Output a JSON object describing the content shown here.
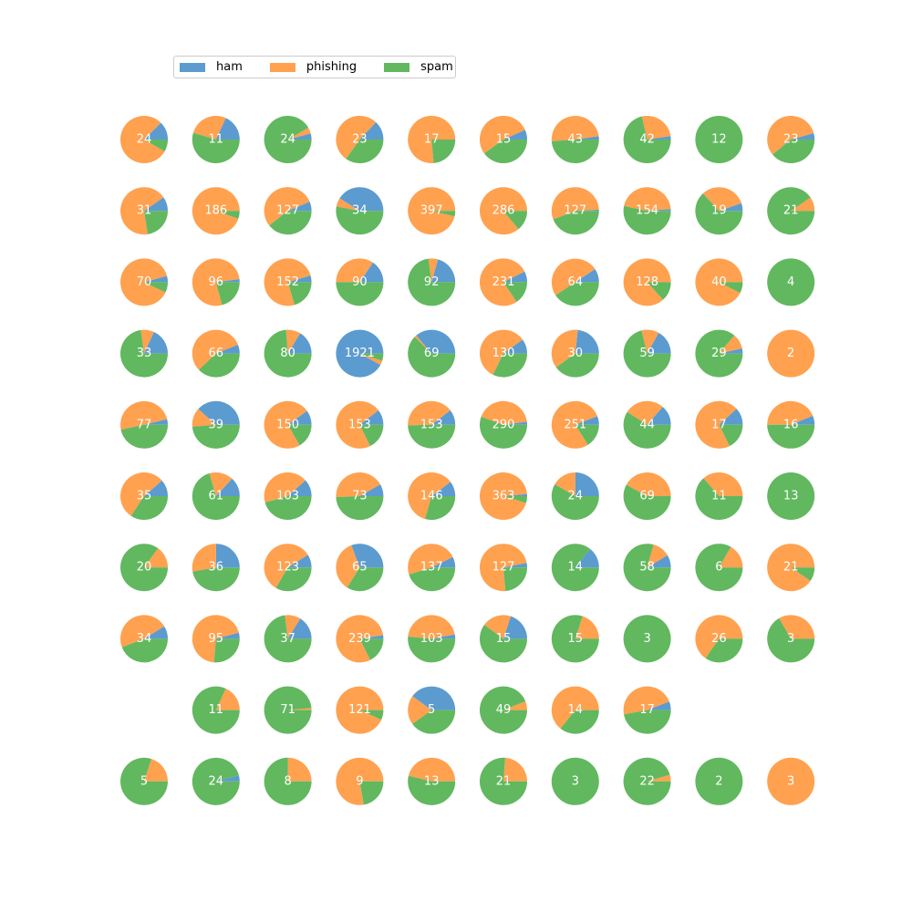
{
  "legend": {
    "placement": "top-left",
    "items": [
      {
        "label": "ham",
        "color": "#5b9bd0"
      },
      {
        "label": "phishing",
        "color": "#ffa14f"
      },
      {
        "label": "spam",
        "color": "#61b85f"
      }
    ]
  },
  "chart_data": {
    "type": "pie",
    "series_names": [
      "ham",
      "phishing",
      "spam"
    ],
    "colors": {
      "ham": "#5b9bd0",
      "phishing": "#ffa14f",
      "spam": "#61b85f"
    },
    "grid": {
      "rows": 10,
      "cols": 10
    },
    "pies": [
      {
        "row": 0,
        "col": 0,
        "label": "24",
        "ham": 3,
        "phishing": 19,
        "spam": 2
      },
      {
        "row": 0,
        "col": 1,
        "label": "11",
        "ham": 2,
        "phishing": 3,
        "spam": 6
      },
      {
        "row": 0,
        "col": 2,
        "label": "24",
        "ham": 1,
        "phishing": 1,
        "spam": 22
      },
      {
        "row": 0,
        "col": 3,
        "label": "23",
        "ham": 3,
        "phishing": 12,
        "spam": 8
      },
      {
        "row": 0,
        "col": 4,
        "label": "17",
        "ham": 0,
        "phishing": 13,
        "spam": 4
      },
      {
        "row": 0,
        "col": 5,
        "label": "15",
        "ham": 1,
        "phishing": 8,
        "spam": 6
      },
      {
        "row": 0,
        "col": 6,
        "label": "43",
        "ham": 1,
        "phishing": 21,
        "spam": 21
      },
      {
        "row": 0,
        "col": 7,
        "label": "42",
        "ham": 1,
        "phishing": 11,
        "spam": 30
      },
      {
        "row": 0,
        "col": 8,
        "label": "12",
        "ham": 0,
        "phishing": 0,
        "spam": 12
      },
      {
        "row": 0,
        "col": 9,
        "label": "23",
        "ham": 1,
        "phishing": 13,
        "spam": 9
      },
      {
        "row": 1,
        "col": 0,
        "label": "31",
        "ham": 3,
        "phishing": 21,
        "spam": 7
      },
      {
        "row": 1,
        "col": 1,
        "label": "186",
        "ham": 0,
        "phishing": 176,
        "spam": 10
      },
      {
        "row": 1,
        "col": 2,
        "label": "127",
        "ham": 8,
        "phishing": 69,
        "spam": 50
      },
      {
        "row": 1,
        "col": 3,
        "label": "34",
        "ham": 14,
        "phishing": 2,
        "spam": 18
      },
      {
        "row": 1,
        "col": 4,
        "label": "397",
        "ham": 0,
        "phishing": 382,
        "spam": 15
      },
      {
        "row": 1,
        "col": 5,
        "label": "286",
        "ham": 0,
        "phishing": 246,
        "spam": 40
      },
      {
        "row": 1,
        "col": 6,
        "label": "127",
        "ham": 1,
        "phishing": 70,
        "spam": 56
      },
      {
        "row": 1,
        "col": 7,
        "label": "154",
        "ham": 2,
        "phishing": 70,
        "spam": 82
      },
      {
        "row": 1,
        "col": 8,
        "label": "19",
        "ham": 1,
        "phishing": 6,
        "spam": 12
      },
      {
        "row": 1,
        "col": 9,
        "label": "21",
        "ham": 0,
        "phishing": 2,
        "spam": 19
      },
      {
        "row": 2,
        "col": 0,
        "label": "70",
        "ham": 3,
        "phishing": 62,
        "spam": 5
      },
      {
        "row": 2,
        "col": 1,
        "label": "96",
        "ham": 2,
        "phishing": 74,
        "spam": 20
      },
      {
        "row": 2,
        "col": 2,
        "label": "152",
        "ham": 7,
        "phishing": 114,
        "spam": 31
      },
      {
        "row": 2,
        "col": 3,
        "label": "90",
        "ham": 14,
        "phishing": 31,
        "spam": 45
      },
      {
        "row": 2,
        "col": 4,
        "label": "92",
        "ham": 19,
        "phishing": 6,
        "spam": 67
      },
      {
        "row": 2,
        "col": 5,
        "label": "231",
        "ham": 17,
        "phishing": 178,
        "spam": 36
      },
      {
        "row": 2,
        "col": 6,
        "label": "64",
        "ham": 6,
        "phishing": 32,
        "spam": 26
      },
      {
        "row": 2,
        "col": 7,
        "label": "128",
        "ham": 0,
        "phishing": 111,
        "spam": 17
      },
      {
        "row": 2,
        "col": 8,
        "label": "40",
        "ham": 0,
        "phishing": 37,
        "spam": 3
      },
      {
        "row": 2,
        "col": 9,
        "label": "4",
        "ham": 0,
        "phishing": 0,
        "spam": 4
      },
      {
        "row": 3,
        "col": 0,
        "label": "33",
        "ham": 6,
        "phishing": 3,
        "spam": 24
      },
      {
        "row": 3,
        "col": 1,
        "label": "66",
        "ham": 4,
        "phishing": 37,
        "spam": 25
      },
      {
        "row": 3,
        "col": 2,
        "label": "80",
        "ham": 13,
        "phishing": 8,
        "spam": 59
      },
      {
        "row": 3,
        "col": 3,
        "label": "1921",
        "ham": 1767,
        "phishing": 58,
        "spam": 96
      },
      {
        "row": 3,
        "col": 4,
        "label": "69",
        "ham": 25,
        "phishing": 1,
        "spam": 43
      },
      {
        "row": 3,
        "col": 5,
        "label": "130",
        "ham": 13,
        "phishing": 75,
        "spam": 42
      },
      {
        "row": 3,
        "col": 6,
        "label": "30",
        "ham": 7,
        "phishing": 11,
        "spam": 12
      },
      {
        "row": 3,
        "col": 7,
        "label": "59",
        "ham": 10,
        "phishing": 7,
        "spam": 42
      },
      {
        "row": 3,
        "col": 8,
        "label": "29",
        "ham": 1,
        "phishing": 3,
        "spam": 25
      },
      {
        "row": 3,
        "col": 9,
        "label": "2",
        "ham": 0,
        "phishing": 2,
        "spam": 0
      },
      {
        "row": 4,
        "col": 0,
        "label": "77",
        "ham": 3,
        "phishing": 38,
        "spam": 36
      },
      {
        "row": 4,
        "col": 1,
        "label": "39",
        "ham": 15,
        "phishing": 5,
        "spam": 19
      },
      {
        "row": 4,
        "col": 2,
        "label": "150",
        "ham": 15,
        "phishing": 110,
        "spam": 25
      },
      {
        "row": 4,
        "col": 3,
        "label": "153",
        "ham": 16,
        "phishing": 110,
        "spam": 27
      },
      {
        "row": 4,
        "col": 4,
        "label": "153",
        "ham": 16,
        "phishing": 61,
        "spam": 76
      },
      {
        "row": 4,
        "col": 5,
        "label": "290",
        "ham": 6,
        "phishing": 123,
        "spam": 161
      },
      {
        "row": 4,
        "col": 6,
        "label": "251",
        "ham": 15,
        "phishing": 196,
        "spam": 40
      },
      {
        "row": 4,
        "col": 7,
        "label": "44",
        "ham": 6,
        "phishing": 12,
        "spam": 26
      },
      {
        "row": 4,
        "col": 8,
        "label": "17",
        "ham": 2,
        "phishing": 12,
        "spam": 3
      },
      {
        "row": 4,
        "col": 9,
        "label": "16",
        "ham": 1,
        "phishing": 7,
        "spam": 8
      },
      {
        "row": 5,
        "col": 0,
        "label": "35",
        "ham": 4,
        "phishing": 19,
        "spam": 12
      },
      {
        "row": 5,
        "col": 1,
        "label": "61",
        "ham": 8,
        "phishing": 10,
        "spam": 43
      },
      {
        "row": 5,
        "col": 2,
        "label": "103",
        "ham": 12,
        "phishing": 44,
        "spam": 47
      },
      {
        "row": 5,
        "col": 3,
        "label": "73",
        "ham": 6,
        "phishing": 31,
        "spam": 36
      },
      {
        "row": 5,
        "col": 4,
        "label": "146",
        "ham": 15,
        "phishing": 88,
        "spam": 43
      },
      {
        "row": 5,
        "col": 5,
        "label": "363",
        "ham": 5,
        "phishing": 341,
        "spam": 17
      },
      {
        "row": 5,
        "col": 6,
        "label": "24",
        "ham": 6,
        "phishing": 4,
        "spam": 14
      },
      {
        "row": 5,
        "col": 7,
        "label": "69",
        "ham": 0,
        "phishing": 29,
        "spam": 40
      },
      {
        "row": 5,
        "col": 8,
        "label": "11",
        "ham": 0,
        "phishing": 4,
        "spam": 7
      },
      {
        "row": 5,
        "col": 9,
        "label": "13",
        "ham": 0,
        "phishing": 0,
        "spam": 13
      },
      {
        "row": 6,
        "col": 0,
        "label": "20",
        "ham": 0,
        "phishing": 3,
        "spam": 17
      },
      {
        "row": 6,
        "col": 1,
        "label": "36",
        "ham": 9,
        "phishing": 10,
        "spam": 17
      },
      {
        "row": 6,
        "col": 2,
        "label": "123",
        "ham": 11,
        "phishing": 71,
        "spam": 41
      },
      {
        "row": 6,
        "col": 3,
        "label": "65",
        "ham": 20,
        "phishing": 23,
        "spam": 22
      },
      {
        "row": 6,
        "col": 4,
        "label": "137",
        "ham": 10,
        "phishing": 65,
        "spam": 62
      },
      {
        "row": 6,
        "col": 5,
        "label": "127",
        "ham": 4,
        "phishing": 93,
        "spam": 30
      },
      {
        "row": 6,
        "col": 6,
        "label": "14",
        "ham": 2,
        "phishing": 0,
        "spam": 12
      },
      {
        "row": 6,
        "col": 7,
        "label": "58",
        "ham": 5,
        "phishing": 7,
        "spam": 46
      },
      {
        "row": 6,
        "col": 8,
        "label": "6",
        "ham": 0,
        "phishing": 1,
        "spam": 5
      },
      {
        "row": 6,
        "col": 9,
        "label": "21",
        "ham": 0,
        "phishing": 19,
        "spam": 2
      },
      {
        "row": 7,
        "col": 0,
        "label": "34",
        "ham": 3,
        "phishing": 16,
        "spam": 15
      },
      {
        "row": 7,
        "col": 1,
        "label": "95",
        "ham": 4,
        "phishing": 66,
        "spam": 25
      },
      {
        "row": 7,
        "col": 2,
        "label": "37",
        "ham": 6,
        "phishing": 4,
        "spam": 27
      },
      {
        "row": 7,
        "col": 3,
        "label": "239",
        "ham": 6,
        "phishing": 191,
        "spam": 42
      },
      {
        "row": 7,
        "col": 4,
        "label": "103",
        "ham": 3,
        "phishing": 47,
        "spam": 53
      },
      {
        "row": 7,
        "col": 5,
        "label": "15",
        "ham": 3,
        "phishing": 3,
        "spam": 9
      },
      {
        "row": 7,
        "col": 6,
        "label": "15",
        "ham": 0,
        "phishing": 3,
        "spam": 12
      },
      {
        "row": 7,
        "col": 7,
        "label": "3",
        "ham": 0,
        "phishing": 0,
        "spam": 3
      },
      {
        "row": 7,
        "col": 8,
        "label": "26",
        "ham": 0,
        "phishing": 17,
        "spam": 9
      },
      {
        "row": 7,
        "col": 9,
        "label": "3",
        "ham": 0,
        "phishing": 1,
        "spam": 2
      },
      {
        "row": 8,
        "col": 1,
        "label": "11",
        "ham": 0,
        "phishing": 2,
        "spam": 9
      },
      {
        "row": 8,
        "col": 2,
        "label": "71",
        "ham": 0,
        "phishing": 1,
        "spam": 70
      },
      {
        "row": 8,
        "col": 3,
        "label": "121",
        "ham": 0,
        "phishing": 113,
        "spam": 8
      },
      {
        "row": 8,
        "col": 4,
        "label": "5",
        "ham": 2,
        "phishing": 1,
        "spam": 2
      },
      {
        "row": 8,
        "col": 5,
        "label": "49",
        "ham": 0,
        "phishing": 3,
        "spam": 46
      },
      {
        "row": 8,
        "col": 6,
        "label": "14",
        "ham": 0,
        "phishing": 9,
        "spam": 5
      },
      {
        "row": 8,
        "col": 7,
        "label": "17",
        "ham": 1,
        "phishing": 8,
        "spam": 8
      },
      {
        "row": 9,
        "col": 0,
        "label": "5",
        "ham": 0,
        "phishing": 1,
        "spam": 4
      },
      {
        "row": 9,
        "col": 1,
        "label": "24",
        "ham": 1,
        "phishing": 0,
        "spam": 23
      },
      {
        "row": 9,
        "col": 2,
        "label": "8",
        "ham": 0,
        "phishing": 2,
        "spam": 6
      },
      {
        "row": 9,
        "col": 3,
        "label": "9",
        "ham": 0,
        "phishing": 7,
        "spam": 2
      },
      {
        "row": 9,
        "col": 4,
        "label": "13",
        "ham": 0,
        "phishing": 6,
        "spam": 7
      },
      {
        "row": 9,
        "col": 5,
        "label": "21",
        "ham": 0,
        "phishing": 5,
        "spam": 16
      },
      {
        "row": 9,
        "col": 6,
        "label": "3",
        "ham": 0,
        "phishing": 0,
        "spam": 3
      },
      {
        "row": 9,
        "col": 7,
        "label": "22",
        "ham": 0,
        "phishing": 1,
        "spam": 21
      },
      {
        "row": 9,
        "col": 8,
        "label": "2",
        "ham": 0,
        "phishing": 0,
        "spam": 2
      },
      {
        "row": 9,
        "col": 9,
        "label": "3",
        "ham": 0,
        "phishing": 3,
        "spam": 0
      }
    ]
  }
}
